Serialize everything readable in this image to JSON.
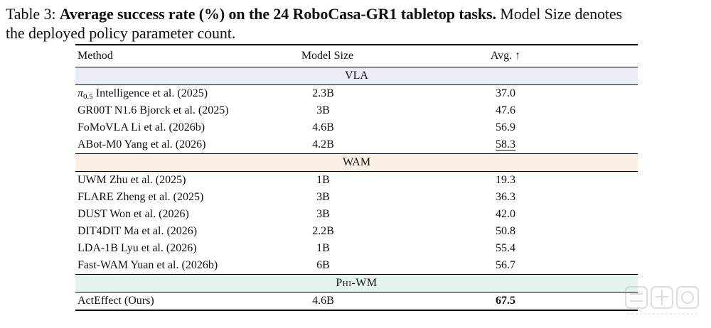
{
  "caption": {
    "label": "Table 3:",
    "title": "Average success rate (%) on the 24 RoboCasa-GR1 tabletop tasks.",
    "note_line1": "Model Size denotes",
    "note_line2": "the deployed policy parameter count."
  },
  "table": {
    "headers": {
      "method": "Method",
      "model_size": "Model Size",
      "avg": "Avg. ↑"
    },
    "groups": [
      {
        "name": "VLA",
        "rows": [
          {
            "pi_symbol": "π",
            "pi_sub": "0.5",
            "method": "Intelligence et al. (2025)",
            "size": "2.3B",
            "avg": "37.0"
          },
          {
            "method": "GR00T N1.6 Bjorck et al. (2025)",
            "size": "3B",
            "avg": "47.6"
          },
          {
            "method": "FoMoVLA Li et al. (2026b)",
            "size": "4.6B",
            "avg": "56.9"
          },
          {
            "method": "ABot-M0 Yang et al. (2026)",
            "size": "4.2B",
            "avg": "58.3",
            "avg_style": "underline"
          }
        ]
      },
      {
        "name": "WAM",
        "rows": [
          {
            "method": "UWM Zhu et al. (2025)",
            "size": "1B",
            "avg": "19.3"
          },
          {
            "method": "FLARE Zheng et al. (2025)",
            "size": "3B",
            "avg": "36.3"
          },
          {
            "method": "DUST Won et al. (2026)",
            "size": "3B",
            "avg": "42.0"
          },
          {
            "method": "DIT4DIT Ma et al. (2026)",
            "size": "2.2B",
            "avg": "50.8"
          },
          {
            "method": "LDA-1B Lyu et al. (2026)",
            "size": "1B",
            "avg": "55.4"
          },
          {
            "method": "Fast-WAM Yuan et al. (2026b)",
            "size": "6B",
            "avg": "56.7"
          }
        ]
      },
      {
        "name": "Phi-WM",
        "rows": [
          {
            "method": "ActEffect (Ours)",
            "size": "4.6B",
            "avg": "67.5",
            "avg_style": "bold"
          }
        ]
      }
    ]
  },
  "colors": {
    "vla_band": "#eaedf8",
    "wam_band": "#fbeee4",
    "phi_band": "#e6f3ec"
  },
  "watermark": {
    "icon": "watermark-logo-icon"
  }
}
